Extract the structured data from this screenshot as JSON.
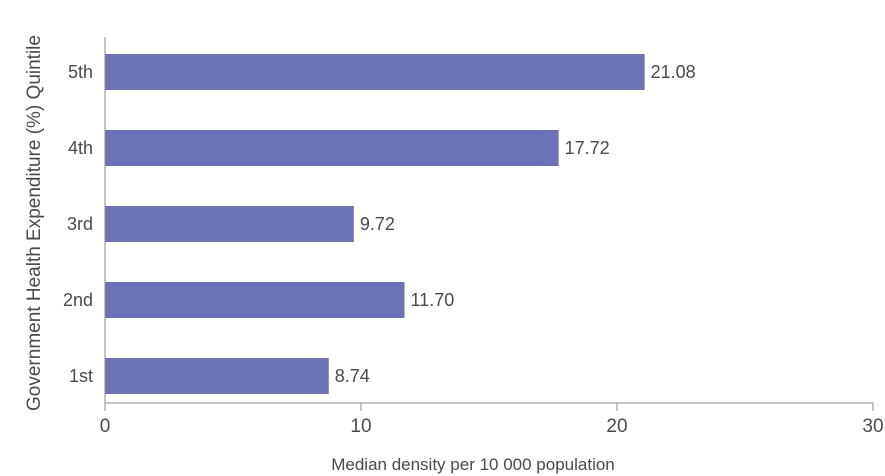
{
  "chart_data": {
    "type": "bar",
    "orientation": "horizontal",
    "categories": [
      "5th",
      "4th",
      "3rd",
      "2nd",
      "1st"
    ],
    "values": [
      21.08,
      17.72,
      9.72,
      11.7,
      8.74
    ],
    "value_labels": [
      "21.08",
      "17.72",
      "9.72",
      "11.70",
      "8.74"
    ],
    "xlabel": "Median density per 10 000 population",
    "ylabel": "Government Health Expenditure (%) Quintile",
    "xlim": [
      0,
      30
    ],
    "xticks": [
      0,
      10,
      20,
      30
    ],
    "xtick_labels": [
      "0",
      "10",
      "20",
      "30"
    ],
    "bar_color": "#6d71b5",
    "grid": false
  }
}
